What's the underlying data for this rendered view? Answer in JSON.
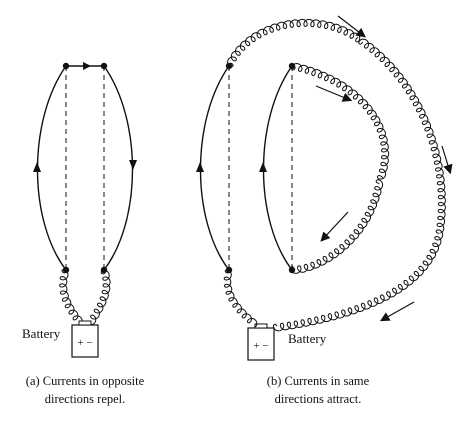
{
  "panel_a": {
    "battery_label": "Battery",
    "battery_signs": "+ −",
    "caption_line1": "(a) Currents in opposite",
    "caption_line2": "directions repel."
  },
  "panel_b": {
    "battery_label": "Battery",
    "battery_signs": "+ −",
    "caption_line1": "(b) Currents in same",
    "caption_line2": "directions attract."
  },
  "icons": [
    "arrow-icon",
    "battery-icon",
    "coil-wire-icon"
  ]
}
